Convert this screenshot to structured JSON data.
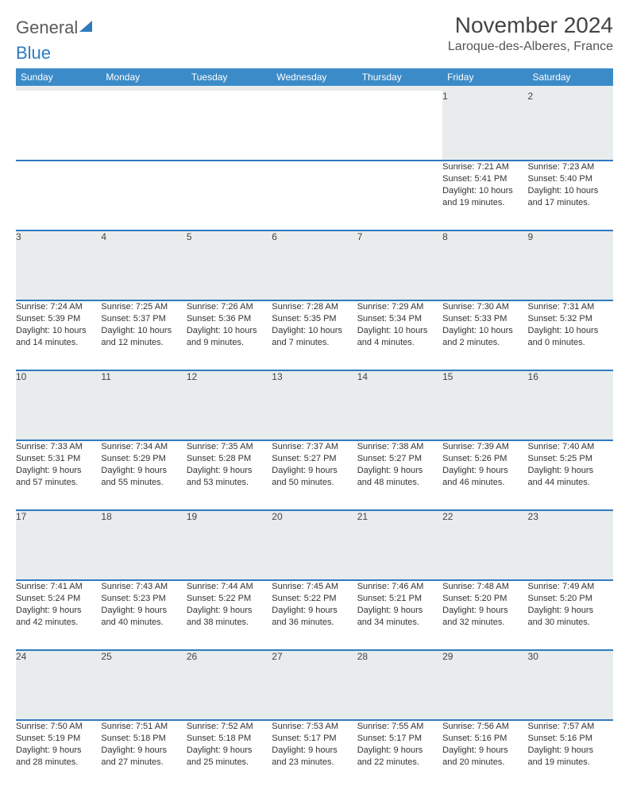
{
  "brand": {
    "word1": "General",
    "word2": "Blue"
  },
  "title": "November 2024",
  "location": "Laroque-des-Alberes, France",
  "colors": {
    "header_bg": "#3b8bc8",
    "border": "#2f7bbf",
    "daynum_bg": "#e9eced",
    "text": "#333333"
  },
  "weekdays": [
    "Sunday",
    "Monday",
    "Tuesday",
    "Wednesday",
    "Thursday",
    "Friday",
    "Saturday"
  ],
  "weeks": [
    [
      null,
      null,
      null,
      null,
      null,
      {
        "n": "1",
        "sr": "Sunrise: 7:21 AM",
        "ss": "Sunset: 5:41 PM",
        "d1": "Daylight: 10 hours",
        "d2": "and 19 minutes."
      },
      {
        "n": "2",
        "sr": "Sunrise: 7:23 AM",
        "ss": "Sunset: 5:40 PM",
        "d1": "Daylight: 10 hours",
        "d2": "and 17 minutes."
      }
    ],
    [
      {
        "n": "3",
        "sr": "Sunrise: 7:24 AM",
        "ss": "Sunset: 5:39 PM",
        "d1": "Daylight: 10 hours",
        "d2": "and 14 minutes."
      },
      {
        "n": "4",
        "sr": "Sunrise: 7:25 AM",
        "ss": "Sunset: 5:37 PM",
        "d1": "Daylight: 10 hours",
        "d2": "and 12 minutes."
      },
      {
        "n": "5",
        "sr": "Sunrise: 7:26 AM",
        "ss": "Sunset: 5:36 PM",
        "d1": "Daylight: 10 hours",
        "d2": "and 9 minutes."
      },
      {
        "n": "6",
        "sr": "Sunrise: 7:28 AM",
        "ss": "Sunset: 5:35 PM",
        "d1": "Daylight: 10 hours",
        "d2": "and 7 minutes."
      },
      {
        "n": "7",
        "sr": "Sunrise: 7:29 AM",
        "ss": "Sunset: 5:34 PM",
        "d1": "Daylight: 10 hours",
        "d2": "and 4 minutes."
      },
      {
        "n": "8",
        "sr": "Sunrise: 7:30 AM",
        "ss": "Sunset: 5:33 PM",
        "d1": "Daylight: 10 hours",
        "d2": "and 2 minutes."
      },
      {
        "n": "9",
        "sr": "Sunrise: 7:31 AM",
        "ss": "Sunset: 5:32 PM",
        "d1": "Daylight: 10 hours",
        "d2": "and 0 minutes."
      }
    ],
    [
      {
        "n": "10",
        "sr": "Sunrise: 7:33 AM",
        "ss": "Sunset: 5:31 PM",
        "d1": "Daylight: 9 hours",
        "d2": "and 57 minutes."
      },
      {
        "n": "11",
        "sr": "Sunrise: 7:34 AM",
        "ss": "Sunset: 5:29 PM",
        "d1": "Daylight: 9 hours",
        "d2": "and 55 minutes."
      },
      {
        "n": "12",
        "sr": "Sunrise: 7:35 AM",
        "ss": "Sunset: 5:28 PM",
        "d1": "Daylight: 9 hours",
        "d2": "and 53 minutes."
      },
      {
        "n": "13",
        "sr": "Sunrise: 7:37 AM",
        "ss": "Sunset: 5:27 PM",
        "d1": "Daylight: 9 hours",
        "d2": "and 50 minutes."
      },
      {
        "n": "14",
        "sr": "Sunrise: 7:38 AM",
        "ss": "Sunset: 5:27 PM",
        "d1": "Daylight: 9 hours",
        "d2": "and 48 minutes."
      },
      {
        "n": "15",
        "sr": "Sunrise: 7:39 AM",
        "ss": "Sunset: 5:26 PM",
        "d1": "Daylight: 9 hours",
        "d2": "and 46 minutes."
      },
      {
        "n": "16",
        "sr": "Sunrise: 7:40 AM",
        "ss": "Sunset: 5:25 PM",
        "d1": "Daylight: 9 hours",
        "d2": "and 44 minutes."
      }
    ],
    [
      {
        "n": "17",
        "sr": "Sunrise: 7:41 AM",
        "ss": "Sunset: 5:24 PM",
        "d1": "Daylight: 9 hours",
        "d2": "and 42 minutes."
      },
      {
        "n": "18",
        "sr": "Sunrise: 7:43 AM",
        "ss": "Sunset: 5:23 PM",
        "d1": "Daylight: 9 hours",
        "d2": "and 40 minutes."
      },
      {
        "n": "19",
        "sr": "Sunrise: 7:44 AM",
        "ss": "Sunset: 5:22 PM",
        "d1": "Daylight: 9 hours",
        "d2": "and 38 minutes."
      },
      {
        "n": "20",
        "sr": "Sunrise: 7:45 AM",
        "ss": "Sunset: 5:22 PM",
        "d1": "Daylight: 9 hours",
        "d2": "and 36 minutes."
      },
      {
        "n": "21",
        "sr": "Sunrise: 7:46 AM",
        "ss": "Sunset: 5:21 PM",
        "d1": "Daylight: 9 hours",
        "d2": "and 34 minutes."
      },
      {
        "n": "22",
        "sr": "Sunrise: 7:48 AM",
        "ss": "Sunset: 5:20 PM",
        "d1": "Daylight: 9 hours",
        "d2": "and 32 minutes."
      },
      {
        "n": "23",
        "sr": "Sunrise: 7:49 AM",
        "ss": "Sunset: 5:20 PM",
        "d1": "Daylight: 9 hours",
        "d2": "and 30 minutes."
      }
    ],
    [
      {
        "n": "24",
        "sr": "Sunrise: 7:50 AM",
        "ss": "Sunset: 5:19 PM",
        "d1": "Daylight: 9 hours",
        "d2": "and 28 minutes."
      },
      {
        "n": "25",
        "sr": "Sunrise: 7:51 AM",
        "ss": "Sunset: 5:18 PM",
        "d1": "Daylight: 9 hours",
        "d2": "and 27 minutes."
      },
      {
        "n": "26",
        "sr": "Sunrise: 7:52 AM",
        "ss": "Sunset: 5:18 PM",
        "d1": "Daylight: 9 hours",
        "d2": "and 25 minutes."
      },
      {
        "n": "27",
        "sr": "Sunrise: 7:53 AM",
        "ss": "Sunset: 5:17 PM",
        "d1": "Daylight: 9 hours",
        "d2": "and 23 minutes."
      },
      {
        "n": "28",
        "sr": "Sunrise: 7:55 AM",
        "ss": "Sunset: 5:17 PM",
        "d1": "Daylight: 9 hours",
        "d2": "and 22 minutes."
      },
      {
        "n": "29",
        "sr": "Sunrise: 7:56 AM",
        "ss": "Sunset: 5:16 PM",
        "d1": "Daylight: 9 hours",
        "d2": "and 20 minutes."
      },
      {
        "n": "30",
        "sr": "Sunrise: 7:57 AM",
        "ss": "Sunset: 5:16 PM",
        "d1": "Daylight: 9 hours",
        "d2": "and 19 minutes."
      }
    ]
  ]
}
